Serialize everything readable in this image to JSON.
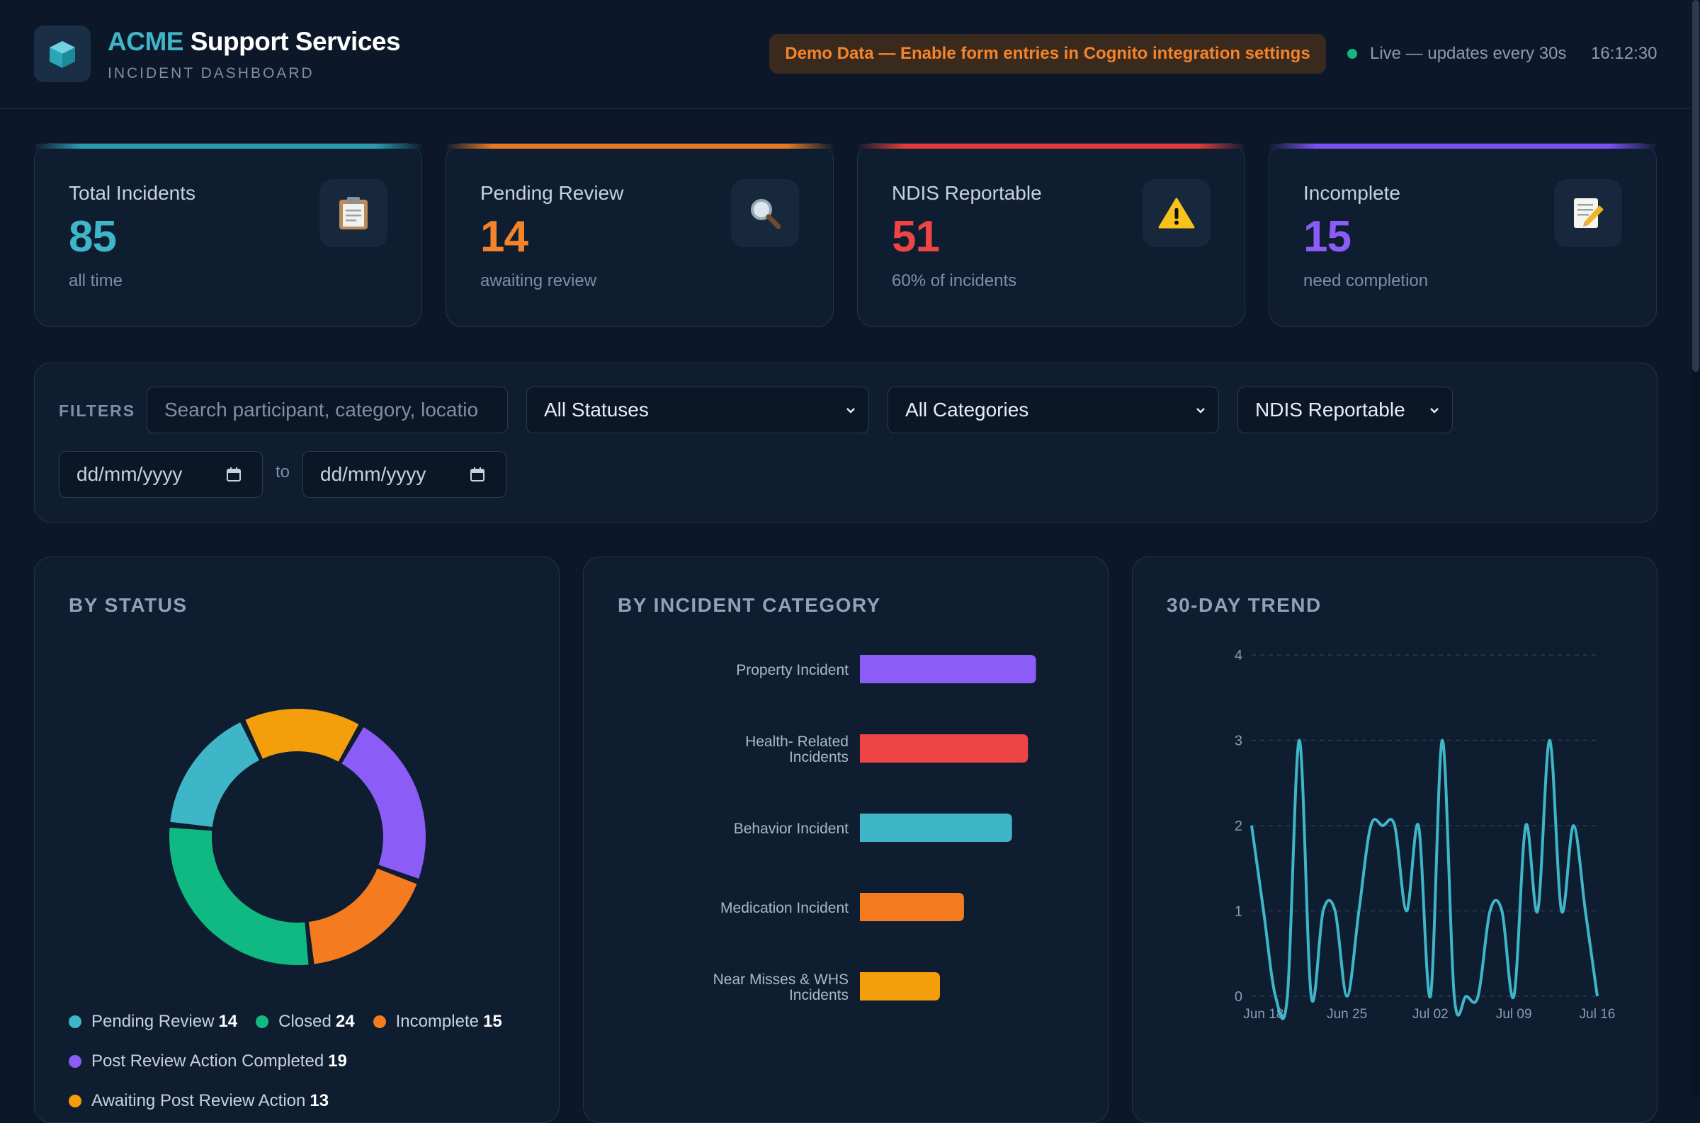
{
  "header": {
    "brand_accent": "ACME",
    "brand_rest": "Support Services",
    "subtitle": "INCIDENT DASHBOARD",
    "demo_notice": "Demo Data — Enable form entries in Cognito integration settings",
    "live_text": "Live — updates every 30s",
    "time": "16:12:30"
  },
  "stats": [
    {
      "label": "Total Incidents",
      "value": "85",
      "sub": "all time",
      "color": "#3fb6c8",
      "icon": "clipboard-icon"
    },
    {
      "label": "Pending Review",
      "value": "14",
      "sub": "awaiting review",
      "color": "#f4842a",
      "icon": "magnifier-icon"
    },
    {
      "label": "NDIS Reportable",
      "value": "51",
      "sub": "60% of incidents",
      "color": "#ef4444",
      "icon": "warning-icon"
    },
    {
      "label": "Incomplete",
      "value": "15",
      "sub": "need completion",
      "color": "#8b5cf6",
      "icon": "memo-icon"
    }
  ],
  "filters": {
    "label": "FILTERS",
    "search_placeholder": "Search participant, category, locatio",
    "status": "All Statuses",
    "category": "All Categories",
    "ndis": "NDIS Reportable",
    "date_from": "dd/mm/yyyy",
    "date_to": "dd/mm/yyyy",
    "to": "to"
  },
  "panels": {
    "status_title": "BY STATUS",
    "category_title": "BY INCIDENT CATEGORY",
    "trend_title": "30-DAY TREND"
  },
  "chart_data": [
    {
      "type": "pie",
      "title": "BY STATUS",
      "series": [
        {
          "name": "Pending Review",
          "value": 14,
          "color": "#3fb6c8"
        },
        {
          "name": "Closed",
          "value": 24,
          "color": "#10b981"
        },
        {
          "name": "Incomplete",
          "value": 15,
          "color": "#f47b20"
        },
        {
          "name": "Post Review Action Completed",
          "value": 19,
          "color": "#8b5cf6"
        },
        {
          "name": "Awaiting Post Review Action",
          "value": 13,
          "color": "#f59e0b"
        }
      ],
      "legend": "bottom"
    },
    {
      "type": "bar",
      "orientation": "horizontal",
      "title": "BY INCIDENT CATEGORY",
      "categories": [
        [
          "Property Incident"
        ],
        [
          "Health- Related",
          "Incidents"
        ],
        [
          "Behavior Incident"
        ],
        [
          "Medication Incident"
        ],
        [
          "Near Misses & WHS",
          "Incidents"
        ]
      ],
      "values": [
        22,
        21,
        19,
        13,
        10
      ],
      "colors": [
        "#8b5cf6",
        "#ef4444",
        "#3fb6c8",
        "#f47b20",
        "#f59e0b"
      ]
    },
    {
      "type": "line",
      "title": "30-DAY TREND",
      "x": [
        "Jun 17",
        "Jun 18",
        "Jun 19",
        "Jun 20",
        "Jun 21",
        "Jun 22",
        "Jun 23",
        "Jun 24",
        "Jun 25",
        "Jun 26",
        "Jun 27",
        "Jun 28",
        "Jun 29",
        "Jun 30",
        "Jul 01",
        "Jul 02",
        "Jul 03",
        "Jul 04",
        "Jul 05",
        "Jul 06",
        "Jul 07",
        "Jul 08",
        "Jul 09",
        "Jul 10",
        "Jul 11",
        "Jul 12",
        "Jul 13",
        "Jul 14",
        "Jul 15",
        "Jul 16"
      ],
      "y": [
        2,
        1,
        0,
        0,
        3,
        0,
        1,
        1,
        0,
        1,
        2,
        2,
        2,
        1,
        2,
        0,
        3,
        0,
        0,
        0,
        1,
        1,
        0,
        2,
        1,
        3,
        1,
        2,
        1,
        0
      ],
      "xticks": [
        "Jun 18",
        "Jun 25",
        "Jul 02",
        "Jul 09",
        "Jul 16"
      ],
      "ylim": [
        0,
        4
      ],
      "yticks": [
        0,
        1,
        2,
        3,
        4
      ],
      "color": "#3fb6c8",
      "grid": true
    }
  ]
}
